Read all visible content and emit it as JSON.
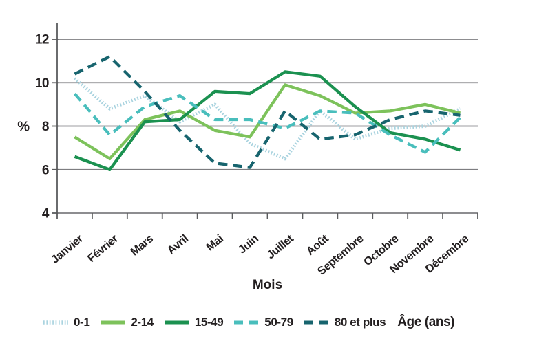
{
  "figure": {
    "ylabel": "%",
    "xlabel": "Mois",
    "legend_title": "Âge (ans)"
  },
  "chart_data": {
    "type": "line",
    "title": "",
    "xlabel": "Mois",
    "ylabel": "%",
    "categories": [
      "Janvier",
      "Février",
      "Mars",
      "Avril",
      "Mai",
      "Juin",
      "Juillet",
      "Août",
      "Septembre",
      "Octobre",
      "Novembre",
      "Décembre"
    ],
    "ylim": [
      4,
      12
    ],
    "yticks": [
      4,
      6,
      8,
      10,
      12
    ],
    "grid": "horizontal",
    "legend_position": "bottom",
    "legend_title": "Âge (ans)",
    "series": [
      {
        "name": "0-1",
        "style": "dotted",
        "color": "#A9D3DF",
        "values": [
          10.2,
          8.8,
          9.4,
          8.2,
          9.0,
          7.2,
          6.5,
          8.7,
          7.4,
          7.9,
          8.0,
          8.8
        ]
      },
      {
        "name": "2-14",
        "style": "solid",
        "color": "#7DC25B",
        "values": [
          7.5,
          6.5,
          8.3,
          8.7,
          7.8,
          7.5,
          9.9,
          9.4,
          8.6,
          8.7,
          9.0,
          8.6
        ]
      },
      {
        "name": "15-49",
        "style": "solid",
        "color": "#1B9150",
        "values": [
          6.6,
          6.0,
          8.2,
          8.3,
          9.6,
          9.5,
          10.5,
          10.3,
          8.9,
          7.7,
          7.4,
          6.9
        ]
      },
      {
        "name": "50-79",
        "style": "dashed",
        "color": "#49BEBC",
        "values": [
          9.5,
          7.6,
          8.9,
          9.4,
          8.3,
          8.3,
          7.9,
          8.7,
          8.6,
          7.6,
          6.8,
          8.4
        ]
      },
      {
        "name": "80 et plus",
        "style": "dashed",
        "color": "#17646E",
        "values": [
          10.4,
          11.2,
          9.6,
          7.8,
          6.3,
          6.1,
          8.7,
          7.4,
          7.6,
          8.3,
          8.7,
          8.5
        ]
      }
    ]
  },
  "colors": {
    "axis": "#5A5B5D",
    "grid": "#7D7D80",
    "text": "#231F20"
  }
}
